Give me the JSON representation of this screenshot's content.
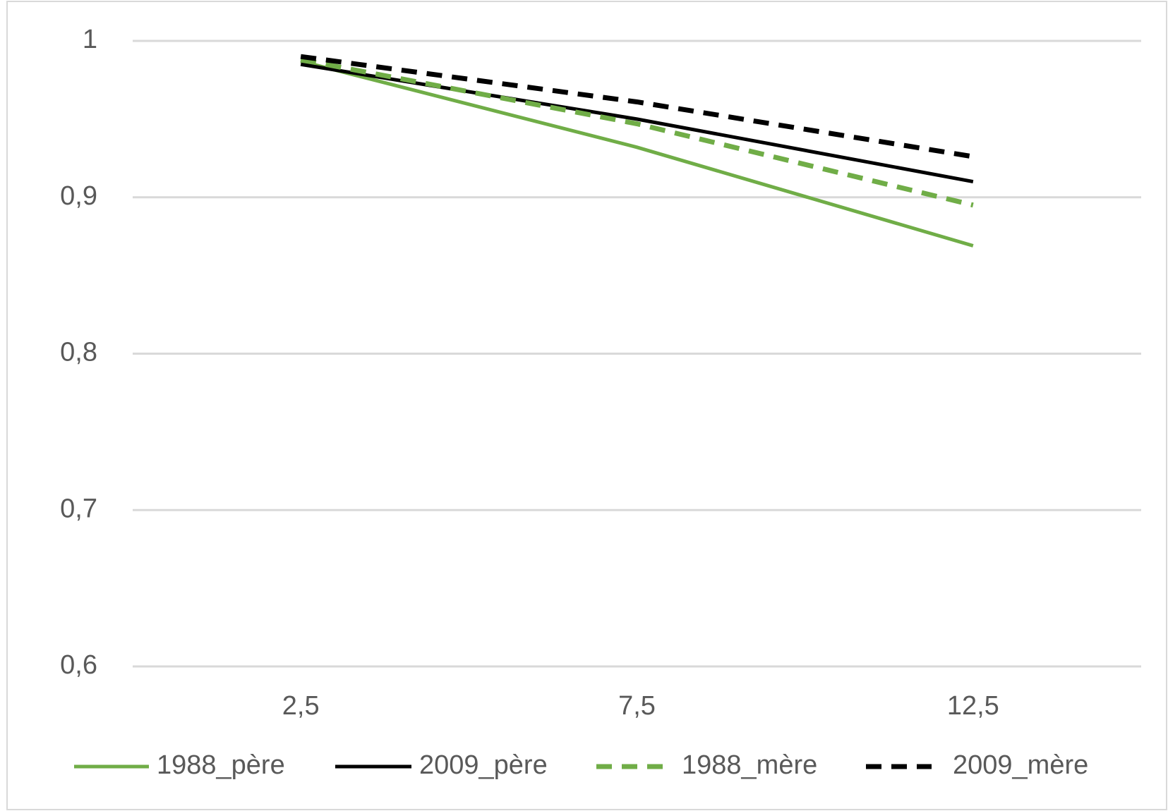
{
  "chart_data": {
    "type": "line",
    "categories": [
      "2,5",
      "7,5",
      "12,5"
    ],
    "series": [
      {
        "name": "1988_père",
        "color": "#70ad47",
        "dash": false,
        "values": [
          0.987,
          0.932,
          0.869
        ]
      },
      {
        "name": "2009_père",
        "color": "#000000",
        "dash": false,
        "values": [
          0.985,
          0.95,
          0.91
        ]
      },
      {
        "name": "1988_mère",
        "color": "#70ad47",
        "dash": true,
        "values": [
          0.988,
          0.947,
          0.895
        ]
      },
      {
        "name": "2009_mère",
        "color": "#000000",
        "dash": true,
        "values": [
          0.99,
          0.961,
          0.926
        ]
      }
    ],
    "ylim": [
      0.6,
      1
    ],
    "yticks": [
      {
        "value": 0.6,
        "label": "0,6"
      },
      {
        "value": 0.7,
        "label": "0,7"
      },
      {
        "value": 0.8,
        "label": "0,8"
      },
      {
        "value": 0.9,
        "label": "0,9"
      },
      1
    ],
    "grid": true,
    "legend": "bottom"
  }
}
